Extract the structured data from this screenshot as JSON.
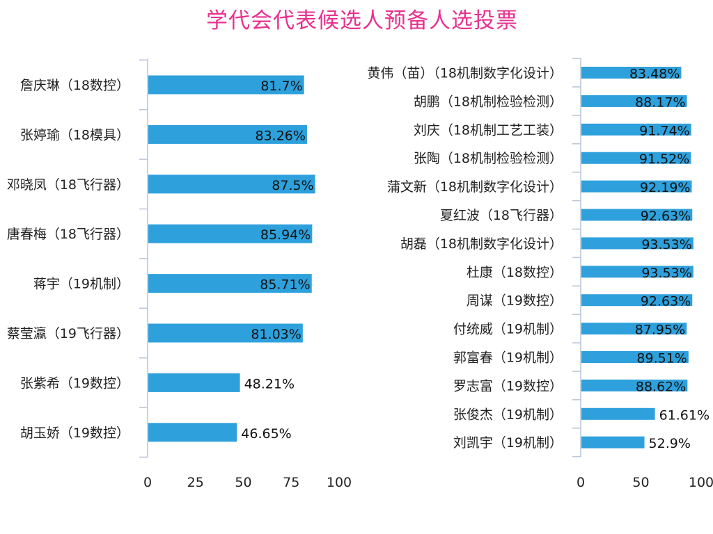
{
  "title": "学代会代表候选人预备人选投票",
  "colors": {
    "bar": "#2ea0dc",
    "title": "#e8318f",
    "axis": "#b9c8d9"
  },
  "chart_data": [
    {
      "type": "bar",
      "orientation": "horizontal",
      "categories": [
        "詹庆琳（18数控）",
        "张婷瑜（18模具）",
        "邓晓凤（18飞行器）",
        "唐春梅（18飞行器）",
        "蒋宇（19机制）",
        "蔡莹瀛（19飞行器）",
        "张紫希（19数控）",
        "胡玉娇（19数控）"
      ],
      "values": [
        81.7,
        83.26,
        87.5,
        85.94,
        85.71,
        81.03,
        48.21,
        46.65
      ],
      "value_labels": [
        "81.7%",
        "83.26%",
        "87.5%",
        "85.94%",
        "85.71%",
        "81.03%",
        "48.21%",
        "46.65%"
      ],
      "xlim": [
        0,
        100
      ],
      "xticks": [
        "0",
        "25",
        "50",
        "75",
        "100"
      ],
      "xtick_values": [
        0,
        25,
        50,
        75,
        100
      ],
      "grid": false
    },
    {
      "type": "bar",
      "orientation": "horizontal",
      "categories": [
        "黄伟（苗）（18机制数字化设计）",
        "胡鹏（18机制检验检测）",
        "刘庆（18机制工艺工装）",
        "张陶（18机制检验检测）",
        "蒲文新（18机制数字化设计）",
        "夏红波（18飞行器）",
        "胡磊（18机制数字化设计）",
        "杜康（18数控）",
        "周谋（19数控）",
        "付统威（19机制）",
        "郭富春（19机制）",
        "罗志富（19数控）",
        "张俊杰（19机制）",
        "刘凯宇（19机制）"
      ],
      "values": [
        83.48,
        88.17,
        91.74,
        91.52,
        92.19,
        92.63,
        93.53,
        93.53,
        92.63,
        87.95,
        89.51,
        88.62,
        61.61,
        52.9
      ],
      "value_labels": [
        "83.48%",
        "88.17%",
        "91.74%",
        "91.52%",
        "92.19%",
        "92.63%",
        "93.53%",
        "93.53%",
        "92.63%",
        "87.95%",
        "89.51%",
        "88.62%",
        "61.61%",
        "52.9%"
      ],
      "xlim": [
        0,
        100
      ],
      "xticks": [
        "0",
        "50",
        "100"
      ],
      "xtick_values": [
        0,
        50,
        100
      ],
      "grid": false
    }
  ]
}
